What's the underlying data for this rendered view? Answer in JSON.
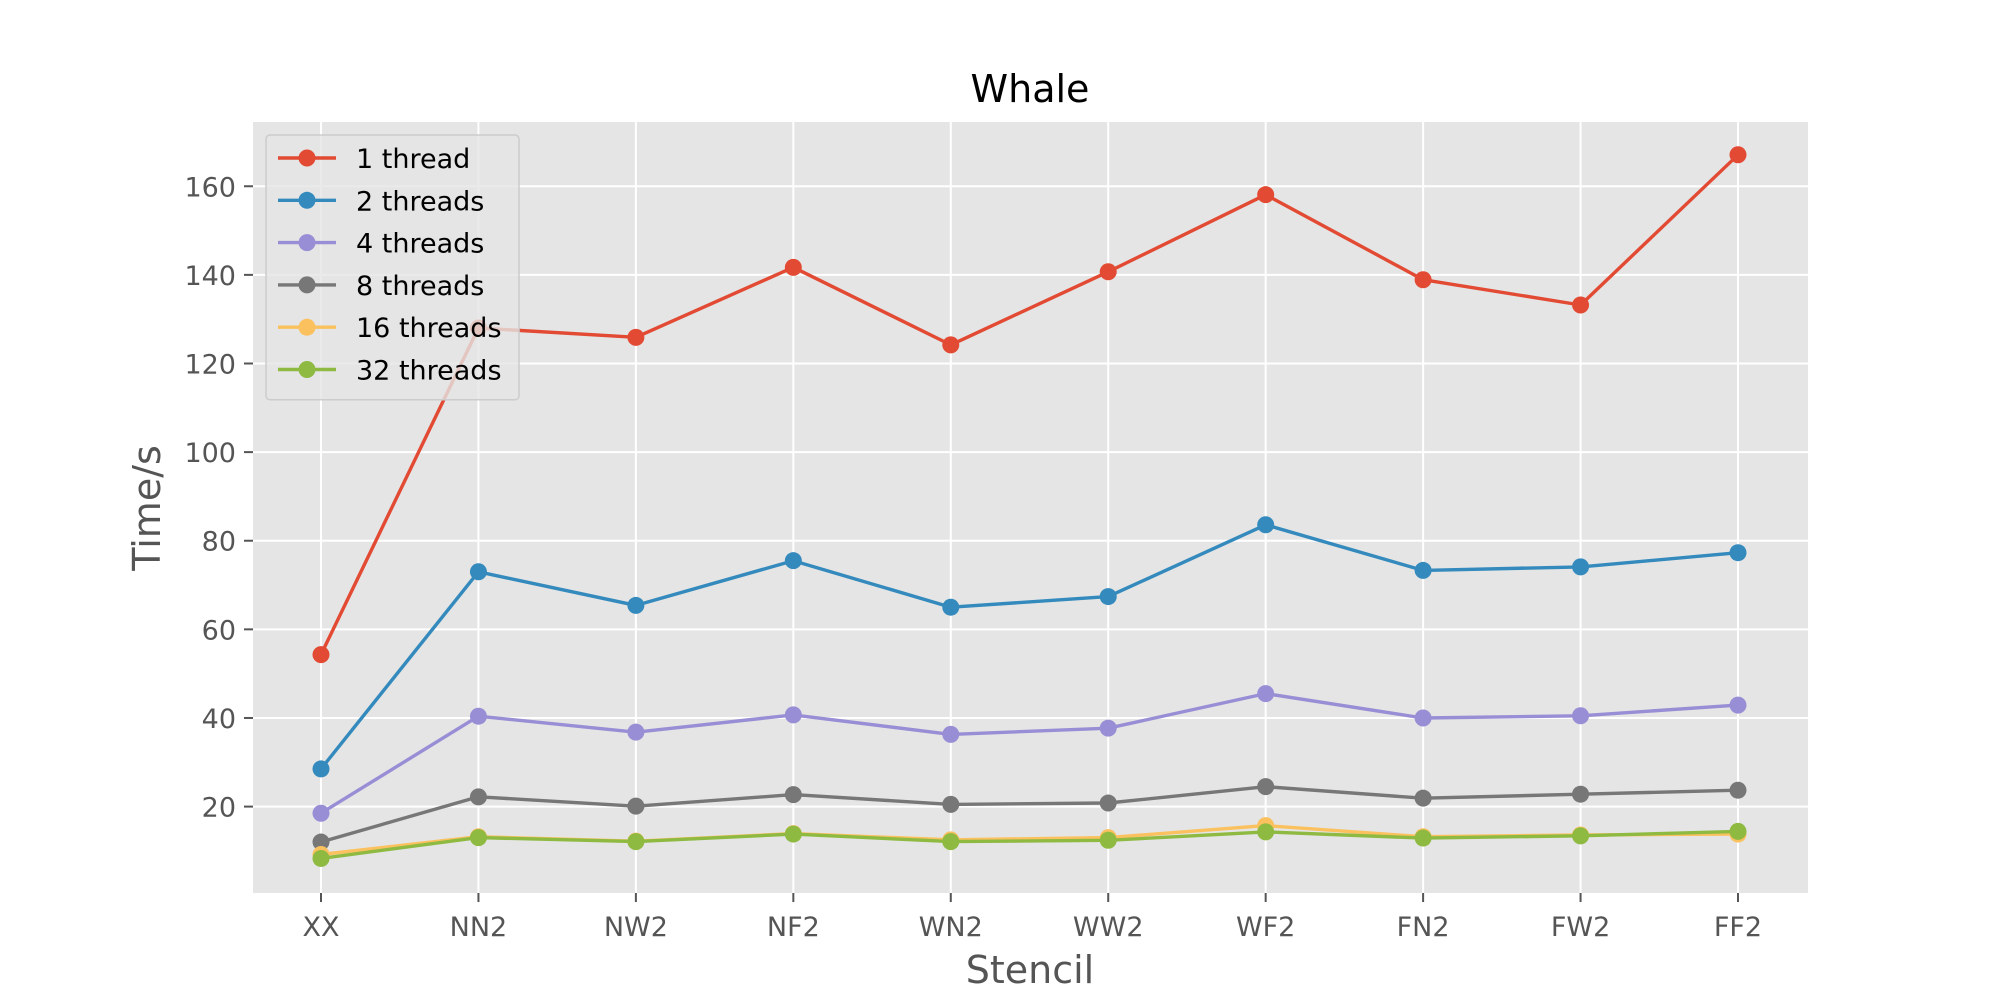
{
  "chart_data": {
    "type": "line",
    "title": "Whale",
    "xlabel": "Stencil",
    "ylabel": "Time/s",
    "categories": [
      "XX",
      "NN2",
      "NW2",
      "NF2",
      "WN2",
      "WW2",
      "WF2",
      "FN2",
      "FW2",
      "FF2"
    ],
    "ylim": [
      0.5,
      174.5
    ],
    "yticks": [
      20,
      40,
      60,
      80,
      100,
      120,
      140,
      160
    ],
    "grid": true,
    "legend_position": "top-left",
    "style": "ggplot",
    "series": [
      {
        "name": "1 thread",
        "color": "#E24A33",
        "values": [
          54.3,
          128.0,
          125.9,
          141.7,
          124.2,
          140.7,
          158.1,
          138.9,
          133.2,
          167.1
        ]
      },
      {
        "name": "2 threads",
        "color": "#348ABD",
        "values": [
          28.5,
          73.0,
          65.4,
          75.5,
          65.0,
          67.4,
          83.6,
          73.3,
          74.1,
          77.3
        ]
      },
      {
        "name": "4 threads",
        "color": "#988ED5",
        "values": [
          18.5,
          40.4,
          36.8,
          40.7,
          36.3,
          37.7,
          45.5,
          40.0,
          40.5,
          42.9
        ]
      },
      {
        "name": "8 threads",
        "color": "#777777",
        "values": [
          12.0,
          22.2,
          20.1,
          22.7,
          20.5,
          20.8,
          24.5,
          21.9,
          22.8,
          23.7
        ]
      },
      {
        "name": "16 threads",
        "color": "#FBC15E",
        "values": [
          9.2,
          13.2,
          12.2,
          13.9,
          12.5,
          13.0,
          15.7,
          13.2,
          13.6,
          13.8
        ]
      },
      {
        "name": "32 threads",
        "color": "#8EBA42",
        "values": [
          8.3,
          13.0,
          12.1,
          13.8,
          12.1,
          12.4,
          14.3,
          12.9,
          13.4,
          14.4
        ]
      }
    ]
  }
}
